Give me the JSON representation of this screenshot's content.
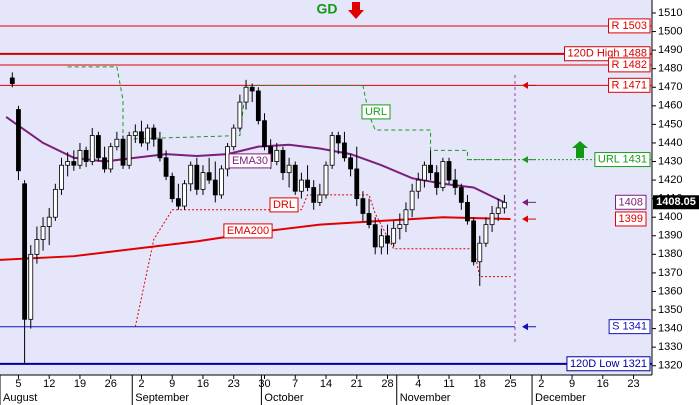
{
  "chart_data": {
    "type": "candlestick",
    "xlim": [
      -2,
      104
    ],
    "ylim": [
      1315,
      1517
    ],
    "yticks": [
      1320,
      1330,
      1340,
      1350,
      1360,
      1370,
      1380,
      1390,
      1400,
      1410,
      1420,
      1430,
      1440,
      1450,
      1460,
      1470,
      1480,
      1490,
      1500,
      1510
    ],
    "xticks": [
      {
        "value": 1,
        "label": "5"
      },
      {
        "value": 6,
        "label": "12"
      },
      {
        "value": 11,
        "label": "19"
      },
      {
        "value": 16,
        "label": "26"
      },
      {
        "value": 21,
        "label": "2"
      },
      {
        "value": 26,
        "label": "9"
      },
      {
        "value": 31,
        "label": "16"
      },
      {
        "value": 36,
        "label": "23"
      },
      {
        "value": 41,
        "label": "30"
      },
      {
        "value": 46,
        "label": "7"
      },
      {
        "value": 51,
        "label": "14"
      },
      {
        "value": 56,
        "label": "21"
      },
      {
        "value": 61,
        "label": "28"
      },
      {
        "value": 66,
        "label": "4"
      },
      {
        "value": 71,
        "label": "11"
      },
      {
        "value": 76,
        "label": "18"
      },
      {
        "value": 81,
        "label": "25"
      },
      {
        "value": 86,
        "label": "2"
      },
      {
        "value": 91,
        "label": "9"
      },
      {
        "value": 96,
        "label": "16"
      },
      {
        "value": 101,
        "label": "23"
      }
    ],
    "month_ticks": [
      {
        "value": -2,
        "label": "August"
      },
      {
        "value": 19.5,
        "label": "September"
      },
      {
        "value": 40.5,
        "label": "October"
      },
      {
        "value": 62.5,
        "label": "November"
      },
      {
        "value": 84.5,
        "label": "December"
      }
    ],
    "up_color": "#ffffff",
    "down_color": "#000000",
    "candles": {
      "x": [
        0,
        1,
        2,
        3,
        4,
        5,
        6,
        7,
        8,
        9,
        10,
        11,
        12,
        13,
        14,
        15,
        16,
        17,
        18,
        19,
        20,
        21,
        22,
        23,
        24,
        25,
        26,
        27,
        28,
        29,
        30,
        31,
        32,
        33,
        34,
        35,
        36,
        37,
        38,
        39,
        40,
        41,
        42,
        43,
        44,
        45,
        46,
        47,
        48,
        49,
        50,
        51,
        52,
        53,
        54,
        55,
        56,
        57,
        58,
        59,
        60,
        61,
        62,
        63,
        64,
        65,
        66,
        67,
        68,
        69,
        70,
        71,
        72,
        73,
        74,
        75,
        76,
        77,
        78,
        79,
        80
      ],
      "open": [
        1475,
        1458,
        1418,
        1345,
        1380,
        1388,
        1395,
        1400,
        1415,
        1428,
        1430,
        1428,
        1436,
        1430,
        1444,
        1432,
        1426,
        1438,
        1442,
        1428,
        1444,
        1446,
        1440,
        1448,
        1442,
        1432,
        1422,
        1410,
        1406,
        1418,
        1428,
        1415,
        1424,
        1420,
        1412,
        1426,
        1438,
        1448,
        1462,
        1470,
        1468,
        1452,
        1438,
        1430,
        1436,
        1424,
        1428,
        1414,
        1420,
        1416,
        1408,
        1412,
        1428,
        1444,
        1440,
        1432,
        1426,
        1410,
        1402,
        1396,
        1384,
        1390,
        1386,
        1394,
        1396,
        1404,
        1414,
        1420,
        1428,
        1424,
        1416,
        1430,
        1420,
        1416,
        1408,
        1398,
        1376,
        1386,
        1396,
        1402,
        1405
      ],
      "high": [
        1478,
        1460,
        1420,
        1385,
        1395,
        1400,
        1405,
        1418,
        1432,
        1435,
        1436,
        1440,
        1438,
        1448,
        1446,
        1438,
        1440,
        1446,
        1444,
        1446,
        1450,
        1452,
        1450,
        1450,
        1446,
        1436,
        1424,
        1418,
        1420,
        1430,
        1432,
        1428,
        1432,
        1430,
        1428,
        1440,
        1450,
        1466,
        1474,
        1472,
        1470,
        1456,
        1442,
        1440,
        1438,
        1432,
        1430,
        1424,
        1428,
        1420,
        1418,
        1430,
        1446,
        1446,
        1446,
        1434,
        1438,
        1414,
        1410,
        1400,
        1394,
        1396,
        1398,
        1402,
        1408,
        1418,
        1424,
        1430,
        1436,
        1428,
        1432,
        1432,
        1426,
        1418,
        1412,
        1400,
        1390,
        1400,
        1406,
        1410,
        1412
      ],
      "low": [
        1470,
        1420,
        1321,
        1340,
        1375,
        1382,
        1385,
        1398,
        1412,
        1422,
        1425,
        1426,
        1427,
        1428,
        1430,
        1424,
        1424,
        1436,
        1426,
        1426,
        1440,
        1438,
        1436,
        1438,
        1430,
        1420,
        1408,
        1404,
        1404,
        1414,
        1412,
        1412,
        1418,
        1408,
        1410,
        1422,
        1436,
        1446,
        1458,
        1462,
        1450,
        1436,
        1426,
        1428,
        1420,
        1416,
        1412,
        1410,
        1414,
        1404,
        1406,
        1410,
        1426,
        1434,
        1430,
        1422,
        1406,
        1398,
        1394,
        1380,
        1380,
        1380,
        1384,
        1388,
        1392,
        1400,
        1410,
        1416,
        1420,
        1412,
        1414,
        1418,
        1412,
        1404,
        1396,
        1374,
        1363,
        1384,
        1392,
        1398,
        1402
      ],
      "close": [
        1472,
        1425,
        1345,
        1380,
        1388,
        1395,
        1400,
        1415,
        1428,
        1430,
        1428,
        1436,
        1430,
        1444,
        1432,
        1426,
        1438,
        1442,
        1428,
        1444,
        1446,
        1440,
        1448,
        1442,
        1432,
        1422,
        1410,
        1406,
        1418,
        1428,
        1415,
        1424,
        1420,
        1412,
        1426,
        1438,
        1448,
        1462,
        1470,
        1468,
        1452,
        1438,
        1430,
        1436,
        1424,
        1428,
        1414,
        1420,
        1416,
        1408,
        1412,
        1428,
        1444,
        1440,
        1432,
        1426,
        1410,
        1402,
        1396,
        1384,
        1390,
        1386,
        1394,
        1396,
        1404,
        1414,
        1420,
        1428,
        1424,
        1416,
        1430,
        1420,
        1416,
        1408,
        1398,
        1376,
        1386,
        1396,
        1402,
        1405,
        1408
      ]
    },
    "lines": [
      {
        "name": "EMA30",
        "color": "#7a1f7a",
        "style": "solid",
        "width": 2,
        "x": [
          -1,
          5,
          10,
          15,
          20,
          25,
          30,
          35,
          40,
          45,
          50,
          55,
          60,
          65,
          70,
          75,
          80
        ],
        "values": [
          1454,
          1440,
          1432,
          1430,
          1432,
          1434,
          1433,
          1434,
          1438,
          1439,
          1437,
          1434,
          1428,
          1421,
          1418,
          1416,
          1408
        ]
      },
      {
        "name": "EMA200",
        "color": "#e00000",
        "style": "solid",
        "width": 2,
        "x": [
          -2,
          10,
          20,
          30,
          40,
          50,
          60,
          70,
          81
        ],
        "values": [
          1377,
          1379,
          1383,
          1387,
          1392,
          1396,
          1398,
          1400,
          1399
        ]
      },
      {
        "name": "URL",
        "color": "#1a9a1a",
        "style": "dashed",
        "width": 1,
        "x": [
          9,
          17,
          18,
          18,
          37,
          38,
          57,
          58,
          59,
          68,
          68,
          74,
          74,
          81
        ],
        "values": [
          1481,
          1481,
          1463,
          1442,
          1444,
          1471,
          1471,
          1455,
          1447,
          1447,
          1436,
          1436,
          1431,
          1431
        ]
      },
      {
        "name": "DRL",
        "color": "#e00000",
        "style": "dotted",
        "width": 1,
        "x": [
          20,
          23,
          26,
          47,
          48,
          58,
          59,
          62,
          75,
          76,
          81
        ],
        "values": [
          1341,
          1388,
          1404,
          1404,
          1412,
          1412,
          1402,
          1383,
          1383,
          1368,
          1368
        ]
      }
    ],
    "levels": [
      {
        "label": "R 1503",
        "value": 1503,
        "color": "#e00000",
        "style": "solid",
        "width": 1,
        "arrow": false
      },
      {
        "label": "120D High 1488",
        "value": 1488,
        "color": "#d00000",
        "style": "solid",
        "width": 2,
        "arrow": false
      },
      {
        "label": "R 1482",
        "value": 1482,
        "color": "#e00000",
        "style": "solid",
        "width": 1,
        "arrow": false
      },
      {
        "label": "R 1471",
        "value": 1471,
        "color": "#e00000",
        "style": "solid",
        "width": 1,
        "arrow": true
      },
      {
        "label": "URL 1431",
        "value": 1431,
        "color": "#1a9a1a",
        "style": "dotted",
        "width": 1,
        "arrow": true
      },
      {
        "label": "S 1341",
        "value": 1341,
        "color": "#1010c0",
        "style": "solid",
        "width": 1,
        "arrow": true
      },
      {
        "label": "120D Low 1321",
        "value": 1321,
        "color": "#0000a0",
        "style": "solid",
        "width": 2,
        "arrow": false
      }
    ],
    "price_markers": [
      {
        "label": "1408",
        "value": 1408,
        "color": "#7a1f7a"
      },
      {
        "label": "1399",
        "value": 1399,
        "color": "#e00000"
      }
    ],
    "last_price": 1408.05,
    "signal": {
      "label": "GD",
      "color": "#119911"
    }
  }
}
